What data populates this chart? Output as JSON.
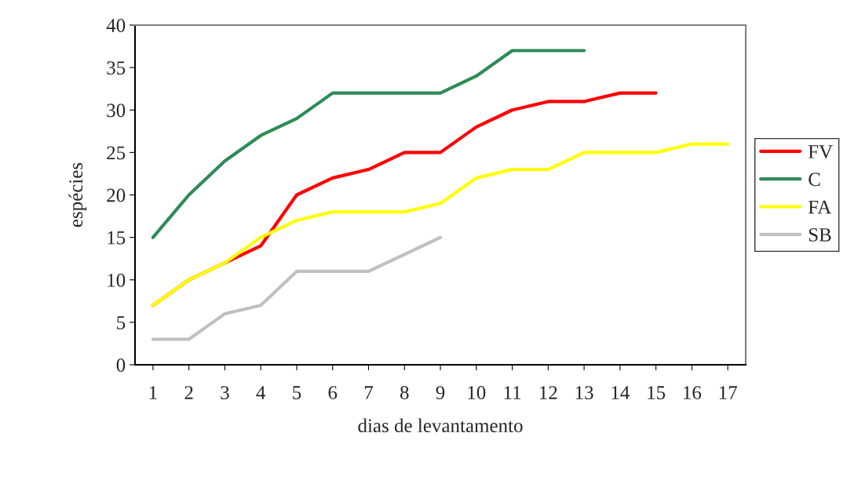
{
  "chart_data": {
    "type": "line",
    "xlabel": "dias de levantamento",
    "ylabel": "espécies",
    "categories": [
      "1",
      "2",
      "3",
      "4",
      "5",
      "6",
      "7",
      "8",
      "9",
      "10",
      "11",
      "12",
      "13",
      "14",
      "15",
      "16",
      "17"
    ],
    "series": [
      {
        "name": "FV",
        "color": "#ff0000",
        "values": [
          7,
          10,
          12,
          14,
          20,
          22,
          23,
          25,
          25,
          28,
          30,
          31,
          31,
          32,
          32,
          null,
          null
        ]
      },
      {
        "name": "C",
        "color": "#2e8b57",
        "values": [
          15,
          20,
          24,
          27,
          29,
          32,
          32,
          32,
          32,
          34,
          37,
          37,
          37,
          null,
          null,
          null,
          null
        ]
      },
      {
        "name": "FA",
        "color": "#ffff00",
        "values": [
          7,
          10,
          12,
          15,
          17,
          18,
          18,
          18,
          19,
          22,
          23,
          23,
          25,
          25,
          25,
          26,
          26
        ]
      },
      {
        "name": "SB",
        "color": "#c0c0c0",
        "values": [
          3,
          3,
          6,
          7,
          11,
          11,
          11,
          13,
          15,
          null,
          null,
          null,
          null,
          null,
          null,
          null,
          null
        ]
      }
    ],
    "ylim": [
      0,
      40
    ],
    "yticks": [
      0,
      5,
      10,
      15,
      20,
      25,
      30,
      35,
      40
    ],
    "grid": false,
    "legend": "right",
    "marker": "none",
    "line_style": "solid"
  }
}
